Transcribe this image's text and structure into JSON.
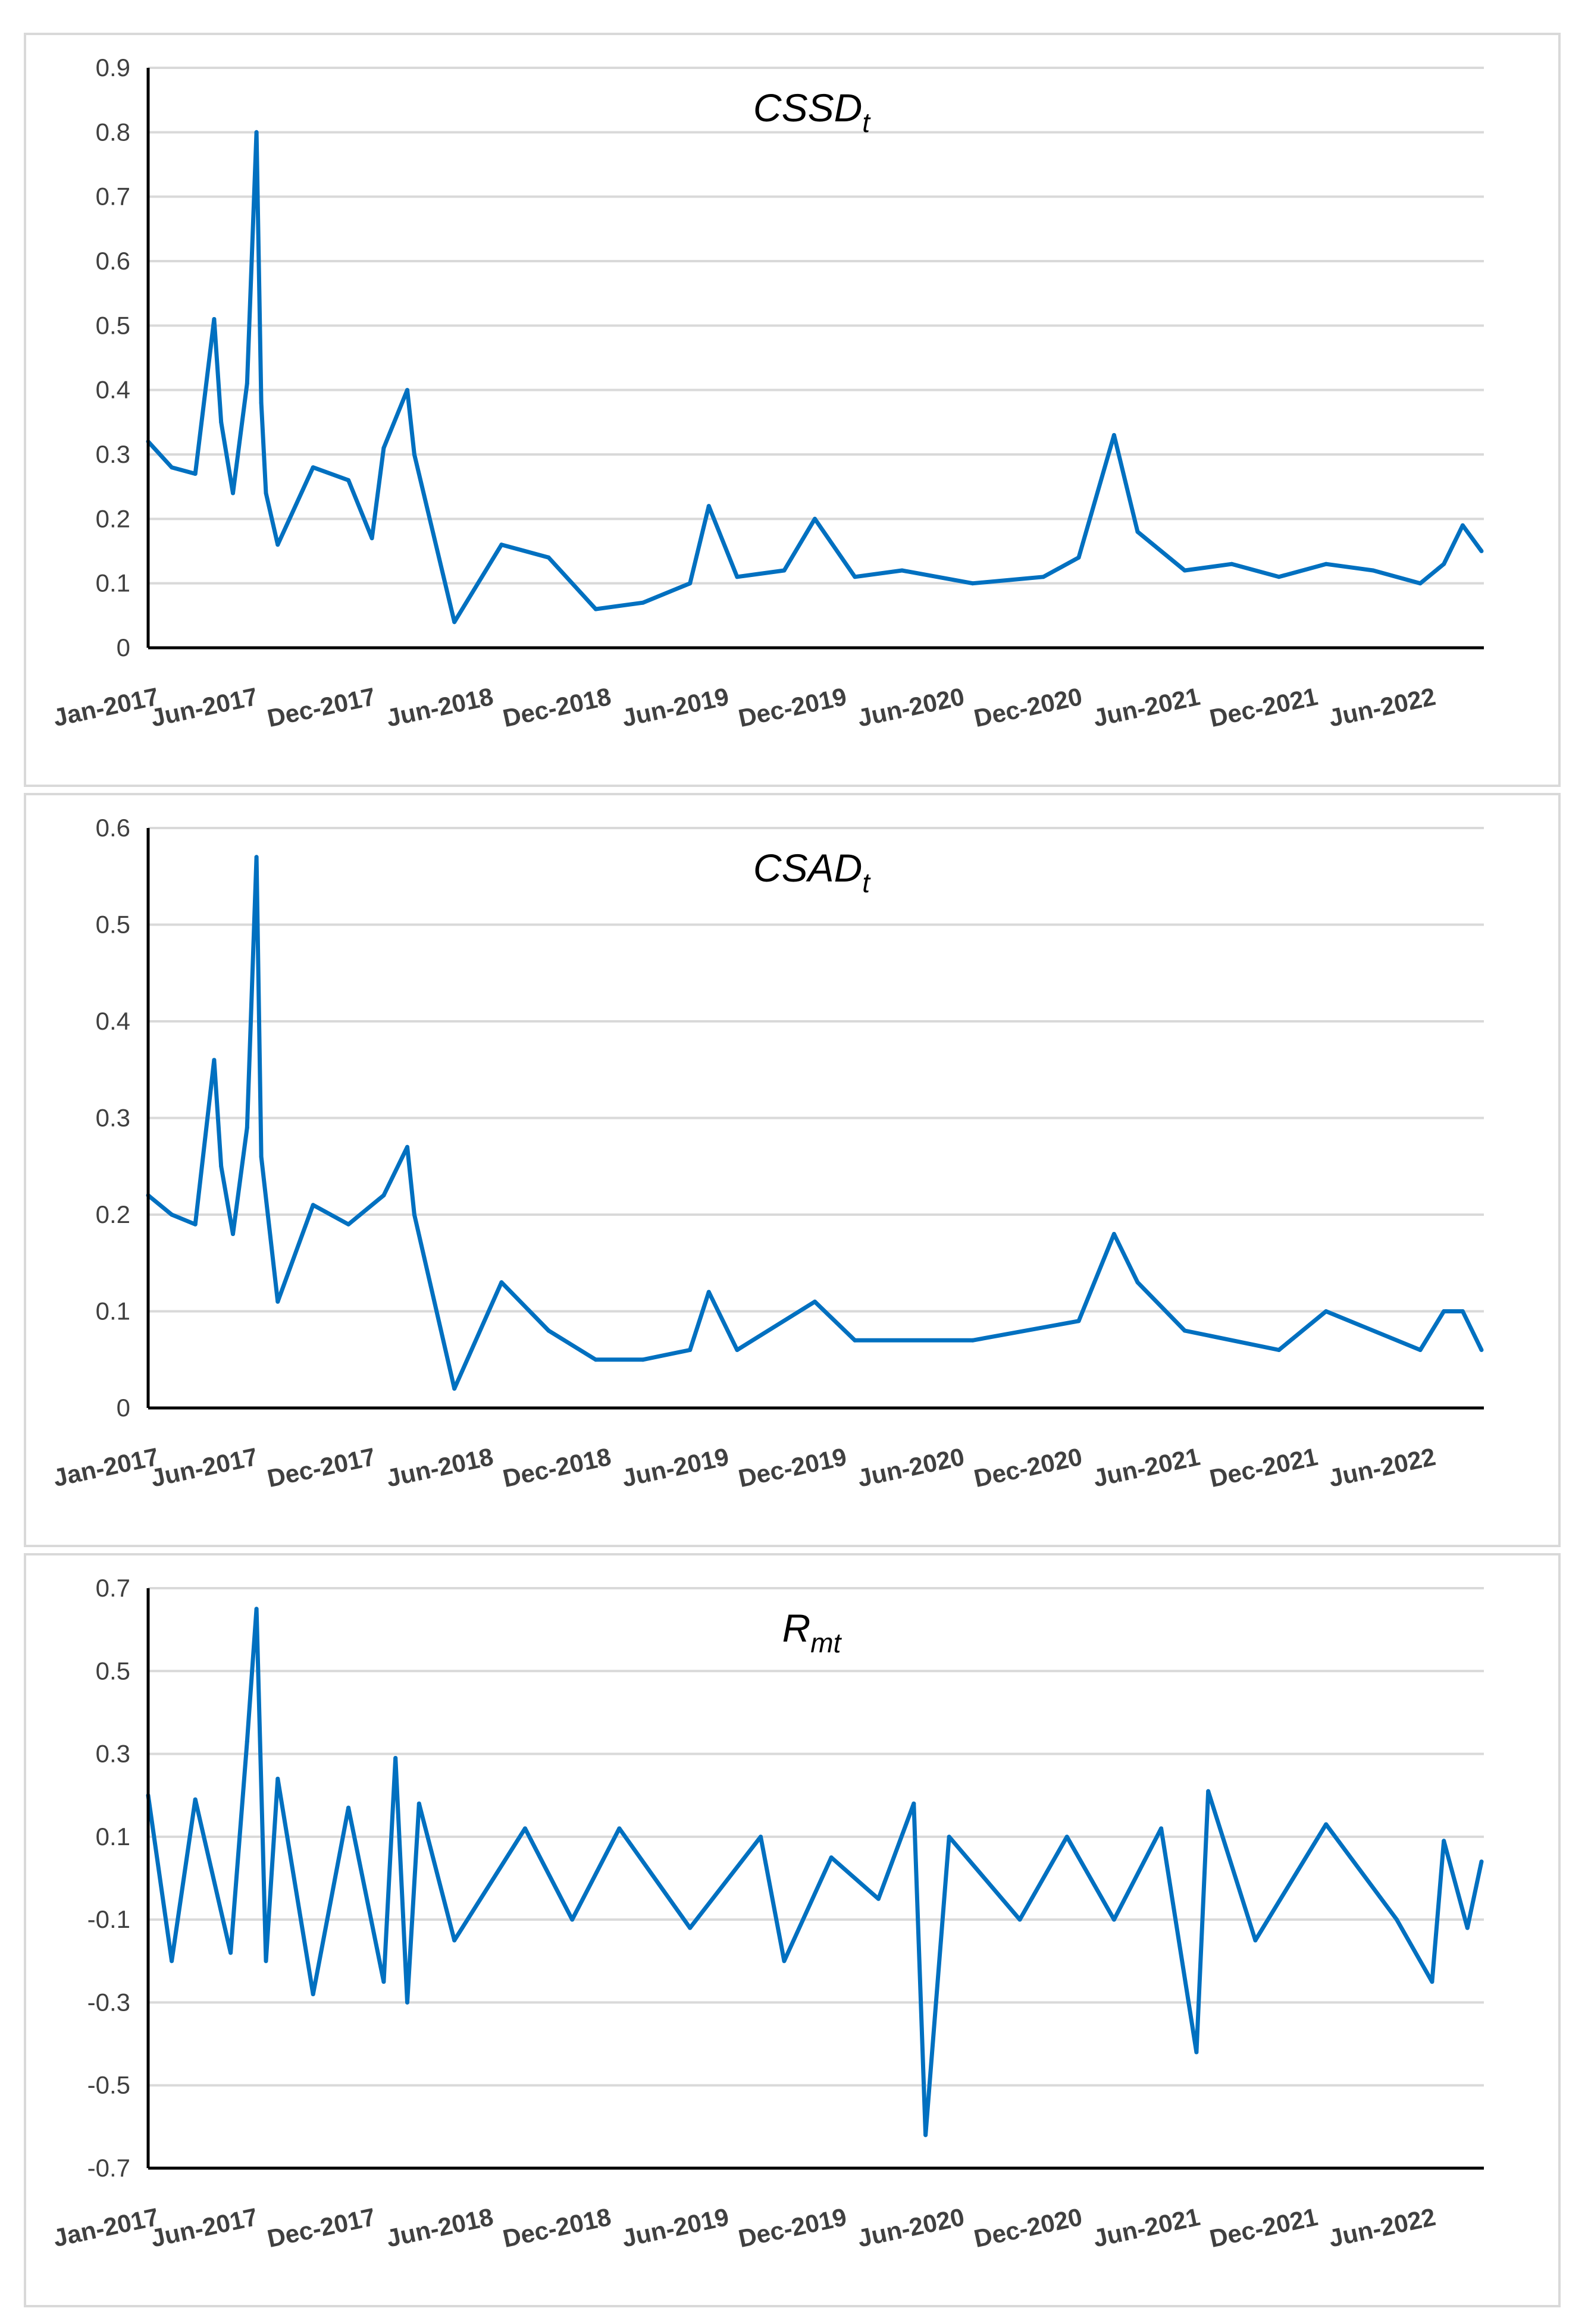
{
  "chart_data": [
    {
      "type": "line",
      "title": "CSSD",
      "title_sub": "t",
      "xlabel": "",
      "ylabel": "",
      "ylim": [
        0,
        0.9
      ],
      "y_ticks": [
        "0",
        "0.1",
        "0.2",
        "0.3",
        "0.4",
        "0.5",
        "0.6",
        "0.7",
        "0.8",
        "0.9"
      ],
      "x_range": [
        "2017-01",
        "2022-08"
      ],
      "x_ticks": [
        "Jan-2017",
        "Jun-2017",
        "Dec-2017",
        "Jun-2018",
        "Dec-2018",
        "Jun-2019",
        "Dec-2019",
        "Jun-2020",
        "Dec-2020",
        "Jun-2021",
        "Dec-2021",
        "Jun-2022"
      ],
      "series": [
        {
          "name": "CSSD_t",
          "color": "#0070c0",
          "x": [
            2017.0,
            2017.1,
            2017.2,
            2017.28,
            2017.31,
            2017.36,
            2017.42,
            2017.46,
            2017.48,
            2017.5,
            2017.55,
            2017.7,
            2017.85,
            2017.95,
            2018.0,
            2018.1,
            2018.13,
            2018.3,
            2018.5,
            2018.7,
            2018.9,
            2019.1,
            2019.3,
            2019.38,
            2019.5,
            2019.7,
            2019.83,
            2020.0,
            2020.2,
            2020.5,
            2020.8,
            2020.95,
            2021.1,
            2021.2,
            2021.4,
            2021.6,
            2021.8,
            2022.0,
            2022.2,
            2022.4,
            2022.5,
            2022.58,
            2022.66
          ],
          "values": [
            0.32,
            0.28,
            0.27,
            0.51,
            0.35,
            0.24,
            0.41,
            0.8,
            0.38,
            0.24,
            0.16,
            0.28,
            0.26,
            0.17,
            0.31,
            0.4,
            0.3,
            0.04,
            0.16,
            0.14,
            0.06,
            0.07,
            0.1,
            0.22,
            0.11,
            0.12,
            0.2,
            0.11,
            0.12,
            0.1,
            0.11,
            0.14,
            0.33,
            0.18,
            0.12,
            0.13,
            0.11,
            0.13,
            0.12,
            0.1,
            0.13,
            0.19,
            0.15
          ]
        }
      ]
    },
    {
      "type": "line",
      "title": "CSAD",
      "title_sub": "t",
      "xlabel": "",
      "ylabel": "",
      "ylim": [
        0,
        0.6
      ],
      "y_ticks": [
        "0",
        "0.1",
        "0.2",
        "0.3",
        "0.4",
        "0.5",
        "0.6"
      ],
      "x_range": [
        "2017-01",
        "2022-08"
      ],
      "x_ticks": [
        "Jan-2017",
        "Jun-2017",
        "Dec-2017",
        "Jun-2018",
        "Dec-2018",
        "Jun-2019",
        "Dec-2019",
        "Jun-2020",
        "Dec-2020",
        "Jun-2021",
        "Dec-2021",
        "Jun-2022"
      ],
      "series": [
        {
          "name": "CSAD_t",
          "color": "#0070c0",
          "x": [
            2017.0,
            2017.1,
            2017.2,
            2017.28,
            2017.31,
            2017.36,
            2017.42,
            2017.46,
            2017.48,
            2017.55,
            2017.7,
            2017.85,
            2018.0,
            2018.1,
            2018.13,
            2018.3,
            2018.5,
            2018.7,
            2018.9,
            2019.1,
            2019.3,
            2019.38,
            2019.5,
            2019.83,
            2020.0,
            2020.5,
            2020.95,
            2021.1,
            2021.2,
            2021.4,
            2021.8,
            2022.0,
            2022.4,
            2022.5,
            2022.58,
            2022.66
          ],
          "values": [
            0.22,
            0.2,
            0.19,
            0.36,
            0.25,
            0.18,
            0.29,
            0.57,
            0.26,
            0.11,
            0.21,
            0.19,
            0.22,
            0.27,
            0.2,
            0.02,
            0.13,
            0.08,
            0.05,
            0.05,
            0.06,
            0.12,
            0.06,
            0.11,
            0.07,
            0.07,
            0.09,
            0.18,
            0.13,
            0.08,
            0.06,
            0.1,
            0.06,
            0.1,
            0.1,
            0.06
          ]
        }
      ]
    },
    {
      "type": "line",
      "title": "R",
      "title_sub": "mt",
      "xlabel": "",
      "ylabel": "",
      "ylim": [
        -0.7,
        0.7
      ],
      "y_ticks": [
        "0.7",
        "0.5",
        "0.3",
        "0.1",
        "-0.1",
        "-0.3",
        "-0.5",
        "-0.7"
      ],
      "x_range": [
        "2017-01",
        "2022-08"
      ],
      "x_ticks": [
        "Jan-2017",
        "Jun-2017",
        "Dec-2017",
        "Jun-2018",
        "Dec-2018",
        "Jun-2019",
        "Dec-2019",
        "Jun-2020",
        "Dec-2020",
        "Jun-2021",
        "Dec-2021",
        "Jun-2022"
      ],
      "series": [
        {
          "name": "R_mt",
          "color": "#0070c0",
          "x": [
            2017.0,
            2017.1,
            2017.2,
            2017.35,
            2017.42,
            2017.46,
            2017.5,
            2017.55,
            2017.7,
            2017.85,
            2018.0,
            2018.05,
            2018.1,
            2018.15,
            2018.3,
            2018.6,
            2018.8,
            2019.0,
            2019.3,
            2019.6,
            2019.7,
            2019.9,
            2020.1,
            2020.25,
            2020.3,
            2020.4,
            2020.7,
            2020.9,
            2021.1,
            2021.3,
            2021.45,
            2021.5,
            2021.7,
            2022.0,
            2022.3,
            2022.45,
            2022.5,
            2022.6,
            2022.66
          ],
          "values": [
            0.2,
            -0.2,
            0.19,
            -0.18,
            0.33,
            0.65,
            -0.2,
            0.24,
            -0.28,
            0.17,
            -0.25,
            0.29,
            -0.3,
            0.18,
            -0.15,
            0.12,
            -0.1,
            0.12,
            -0.12,
            0.1,
            -0.2,
            0.05,
            -0.05,
            0.18,
            -0.62,
            0.1,
            -0.1,
            0.1,
            -0.1,
            0.12,
            -0.42,
            0.21,
            -0.15,
            0.13,
            -0.1,
            -0.25,
            0.09,
            -0.12,
            0.04
          ]
        }
      ]
    }
  ]
}
